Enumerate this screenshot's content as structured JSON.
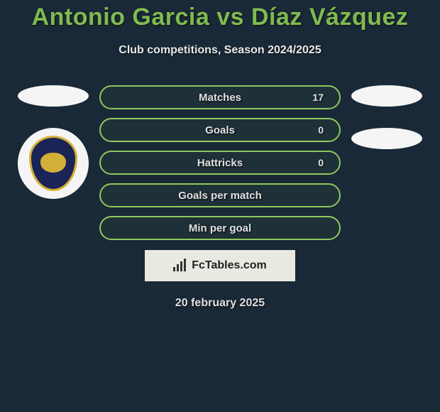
{
  "title": "Antonio Garcia vs Díaz Vázquez",
  "subtitle": "Club competitions, Season 2024/2025",
  "date": "20 february 2025",
  "branding": "FcTables.com",
  "colors": {
    "background": "#1a2937",
    "accent": "#7fbb4f",
    "pill_border": "#8fc95f",
    "text": "#e0e0e0",
    "badge_bg": "#f5f5f5",
    "pumas_navy": "#1a2456",
    "pumas_gold": "#d4af37"
  },
  "stats": [
    {
      "label": "Matches",
      "value": "17"
    },
    {
      "label": "Goals",
      "value": "0"
    },
    {
      "label": "Hattricks",
      "value": "0"
    },
    {
      "label": "Goals per match",
      "value": ""
    },
    {
      "label": "Min per goal",
      "value": ""
    }
  ],
  "left_player": {
    "has_avatar": false,
    "team": "Pumas UNAM"
  },
  "right_player": {
    "has_avatar": false,
    "team": ""
  }
}
